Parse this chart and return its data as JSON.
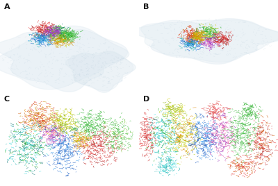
{
  "labels": [
    "A",
    "B",
    "C",
    "D"
  ],
  "background_color": "#ffffff",
  "seed": 42,
  "colors_ribbon": [
    "#e53030",
    "#22aa22",
    "#2266cc",
    "#9933bb",
    "#dd8800",
    "#11aaaa",
    "#cc8800",
    "#aa2222",
    "#117777",
    "#cc5500",
    "#44bb44",
    "#3399ee",
    "#aa44cc",
    "#ee3333",
    "#cccc00",
    "#ff66aa",
    "#44dddd",
    "#ff8833",
    "#6655dd",
    "#55cc55"
  ],
  "ghost_color_fill": "#dce8f0",
  "ghost_color_line": "#b0c8d8",
  "title_fontsize": 8,
  "label_color": "#111111"
}
